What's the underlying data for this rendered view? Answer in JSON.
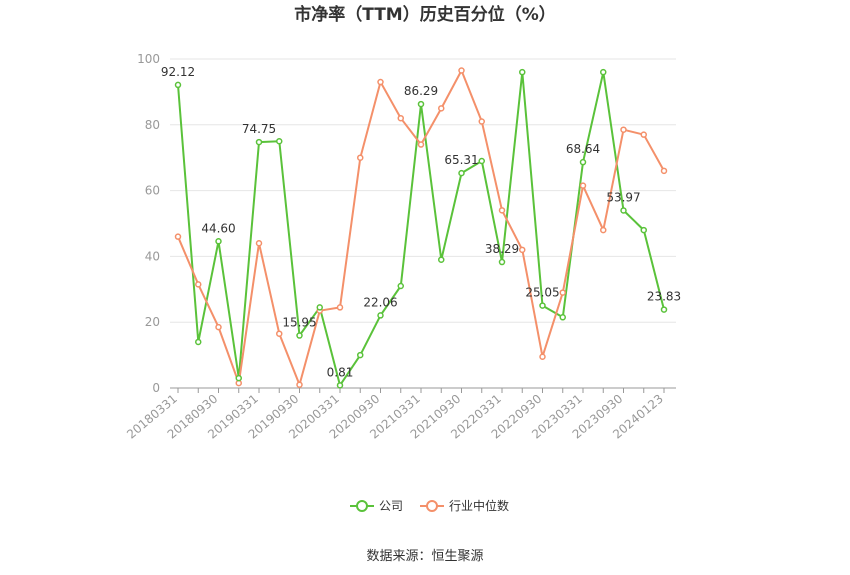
{
  "chart_data": {
    "type": "line",
    "title": "市净率（TTM）历史百分位（%）",
    "xlabel": "",
    "ylabel": "",
    "ylim": [
      0,
      100
    ],
    "y_ticks": [
      "0",
      "20",
      "40",
      "60",
      "80",
      "100"
    ],
    "grid": "horizontal",
    "legend_position": "bottom",
    "x": [
      "20180331",
      "20180630",
      "20180930",
      "20181231",
      "20190331",
      "20190630",
      "20190930",
      "20191231",
      "20200331",
      "20200630",
      "20200930",
      "20201231",
      "20210331",
      "20210630",
      "20210930",
      "20211231",
      "20220331",
      "20220630",
      "20220930",
      "20221231",
      "20230331",
      "20230630",
      "20230930",
      "20231231",
      "20240123"
    ],
    "x_tick_labels": [
      "20180331",
      "20180930",
      "20190331",
      "20190930",
      "20200331",
      "20200930",
      "20210331",
      "20210930",
      "20220331",
      "20220930",
      "20230331",
      "20230930",
      "20240123"
    ],
    "series": [
      {
        "name": "公司",
        "color": "#5ac23a",
        "values": [
          92.12,
          14,
          44.6,
          3,
          74.75,
          75,
          15.95,
          24.5,
          0.81,
          10,
          22.06,
          31,
          86.29,
          39,
          65.31,
          69,
          38.29,
          96,
          25.05,
          21.5,
          68.64,
          96,
          53.97,
          48,
          23.83
        ]
      },
      {
        "name": "行业中位数",
        "color": "#f4906a",
        "values": [
          46,
          31.5,
          18.5,
          1.5,
          44,
          16.5,
          1,
          23.5,
          24.5,
          70,
          93,
          82,
          74,
          85,
          96.5,
          81,
          54,
          42,
          9.5,
          29,
          61.5,
          48,
          78.5,
          77,
          66
        ]
      }
    ],
    "data_labels": [
      {
        "index": 0,
        "text": "92.12"
      },
      {
        "index": 2,
        "text": "44.60"
      },
      {
        "index": 4,
        "text": "74.75"
      },
      {
        "index": 6,
        "text": "15.95"
      },
      {
        "index": 8,
        "text": "0.81"
      },
      {
        "index": 10,
        "text": "22.06"
      },
      {
        "index": 12,
        "text": "86.29"
      },
      {
        "index": 14,
        "text": "65.31"
      },
      {
        "index": 16,
        "text": "38.29"
      },
      {
        "index": 18,
        "text": "25.05"
      },
      {
        "index": 20,
        "text": "68.64"
      },
      {
        "index": 22,
        "text": "53.97"
      },
      {
        "index": 24,
        "text": "23.83"
      }
    ]
  },
  "source": "数据来源：恒生聚源"
}
